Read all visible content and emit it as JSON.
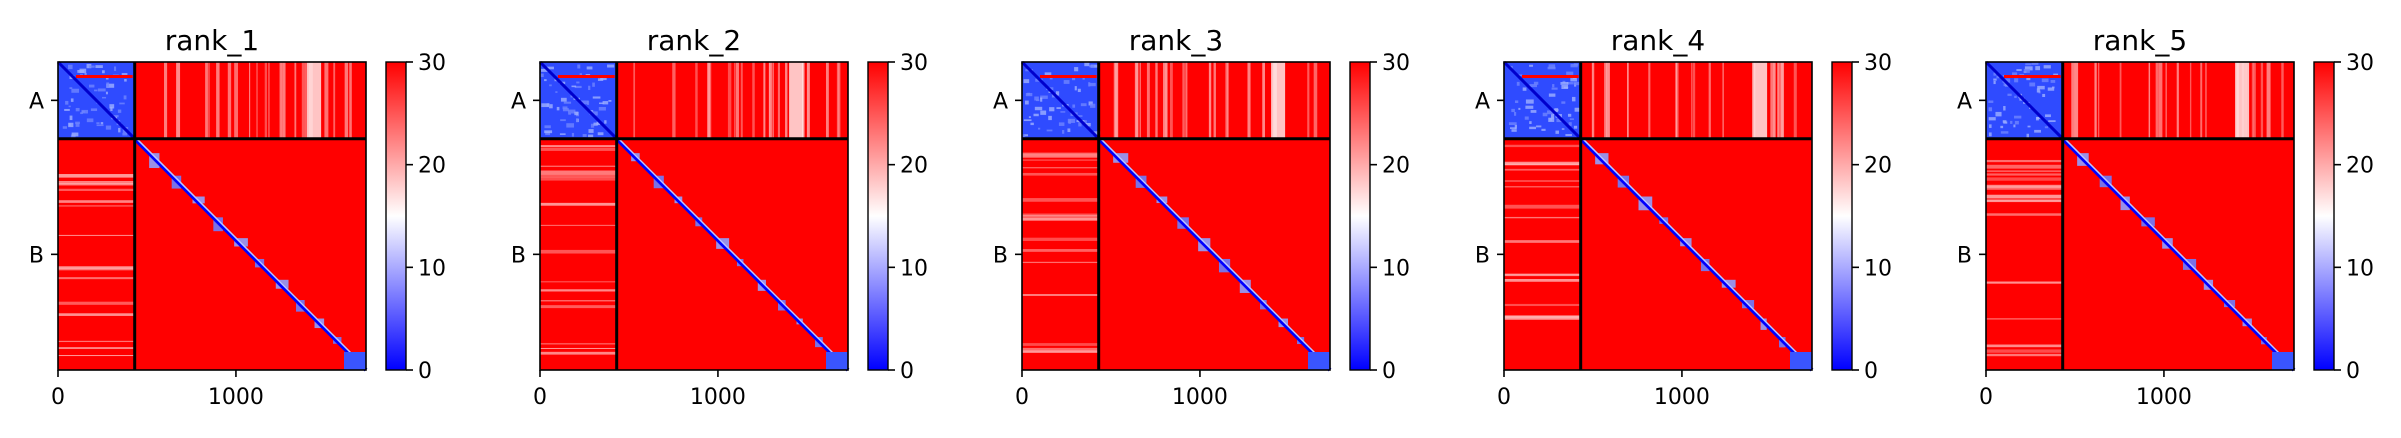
{
  "chart_data": [
    {
      "type": "heatmap",
      "title": "rank_1",
      "xlabel": "",
      "ylabel": "",
      "x_ticks": [
        0,
        1000
      ],
      "x_tick_labels": [
        "0",
        "1000"
      ],
      "y_chain_labels": [
        "A",
        "B"
      ],
      "chain_boundary": 431,
      "length": 1731,
      "colorbar": {
        "min": 0,
        "max": 30,
        "ticks": [
          0,
          10,
          20,
          30
        ],
        "tick_labels": [
          "0",
          "10",
          "20",
          "30"
        ],
        "colormap": "bwr"
      }
    },
    {
      "type": "heatmap",
      "title": "rank_2",
      "xlabel": "",
      "ylabel": "",
      "x_ticks": [
        0,
        1000
      ],
      "x_tick_labels": [
        "0",
        "1000"
      ],
      "y_chain_labels": [
        "A",
        "B"
      ],
      "chain_boundary": 431,
      "length": 1731,
      "colorbar": {
        "min": 0,
        "max": 30,
        "ticks": [
          0,
          10,
          20,
          30
        ],
        "tick_labels": [
          "0",
          "10",
          "20",
          "30"
        ],
        "colormap": "bwr"
      }
    },
    {
      "type": "heatmap",
      "title": "rank_3",
      "xlabel": "",
      "ylabel": "",
      "x_ticks": [
        0,
        1000
      ],
      "x_tick_labels": [
        "0",
        "1000"
      ],
      "y_chain_labels": [
        "A",
        "B"
      ],
      "chain_boundary": 431,
      "length": 1731,
      "colorbar": {
        "min": 0,
        "max": 30,
        "ticks": [
          0,
          10,
          20,
          30
        ],
        "tick_labels": [
          "0",
          "10",
          "20",
          "30"
        ],
        "colormap": "bwr"
      }
    },
    {
      "type": "heatmap",
      "title": "rank_4",
      "xlabel": "",
      "ylabel": "",
      "x_ticks": [
        0,
        1000
      ],
      "x_tick_labels": [
        "0",
        "1000"
      ],
      "y_chain_labels": [
        "A",
        "B"
      ],
      "chain_boundary": 431,
      "length": 1731,
      "colorbar": {
        "min": 0,
        "max": 30,
        "ticks": [
          0,
          10,
          20,
          30
        ],
        "tick_labels": [
          "0",
          "10",
          "20",
          "30"
        ],
        "colormap": "bwr"
      }
    },
    {
      "type": "heatmap",
      "title": "rank_5",
      "xlabel": "",
      "ylabel": "",
      "x_ticks": [
        0,
        1000
      ],
      "x_tick_labels": [
        "0",
        "1000"
      ],
      "y_chain_labels": [
        "A",
        "B"
      ],
      "chain_boundary": 431,
      "length": 1731,
      "colorbar": {
        "min": 0,
        "max": 30,
        "ticks": [
          0,
          10,
          20,
          30
        ],
        "tick_labels": [
          "0",
          "10",
          "20",
          "30"
        ],
        "colormap": "bwr"
      }
    }
  ],
  "colors": {
    "low": "#0000ff",
    "mid": "#ffffff",
    "high": "#ff0000",
    "boundary_line": "#000000"
  }
}
